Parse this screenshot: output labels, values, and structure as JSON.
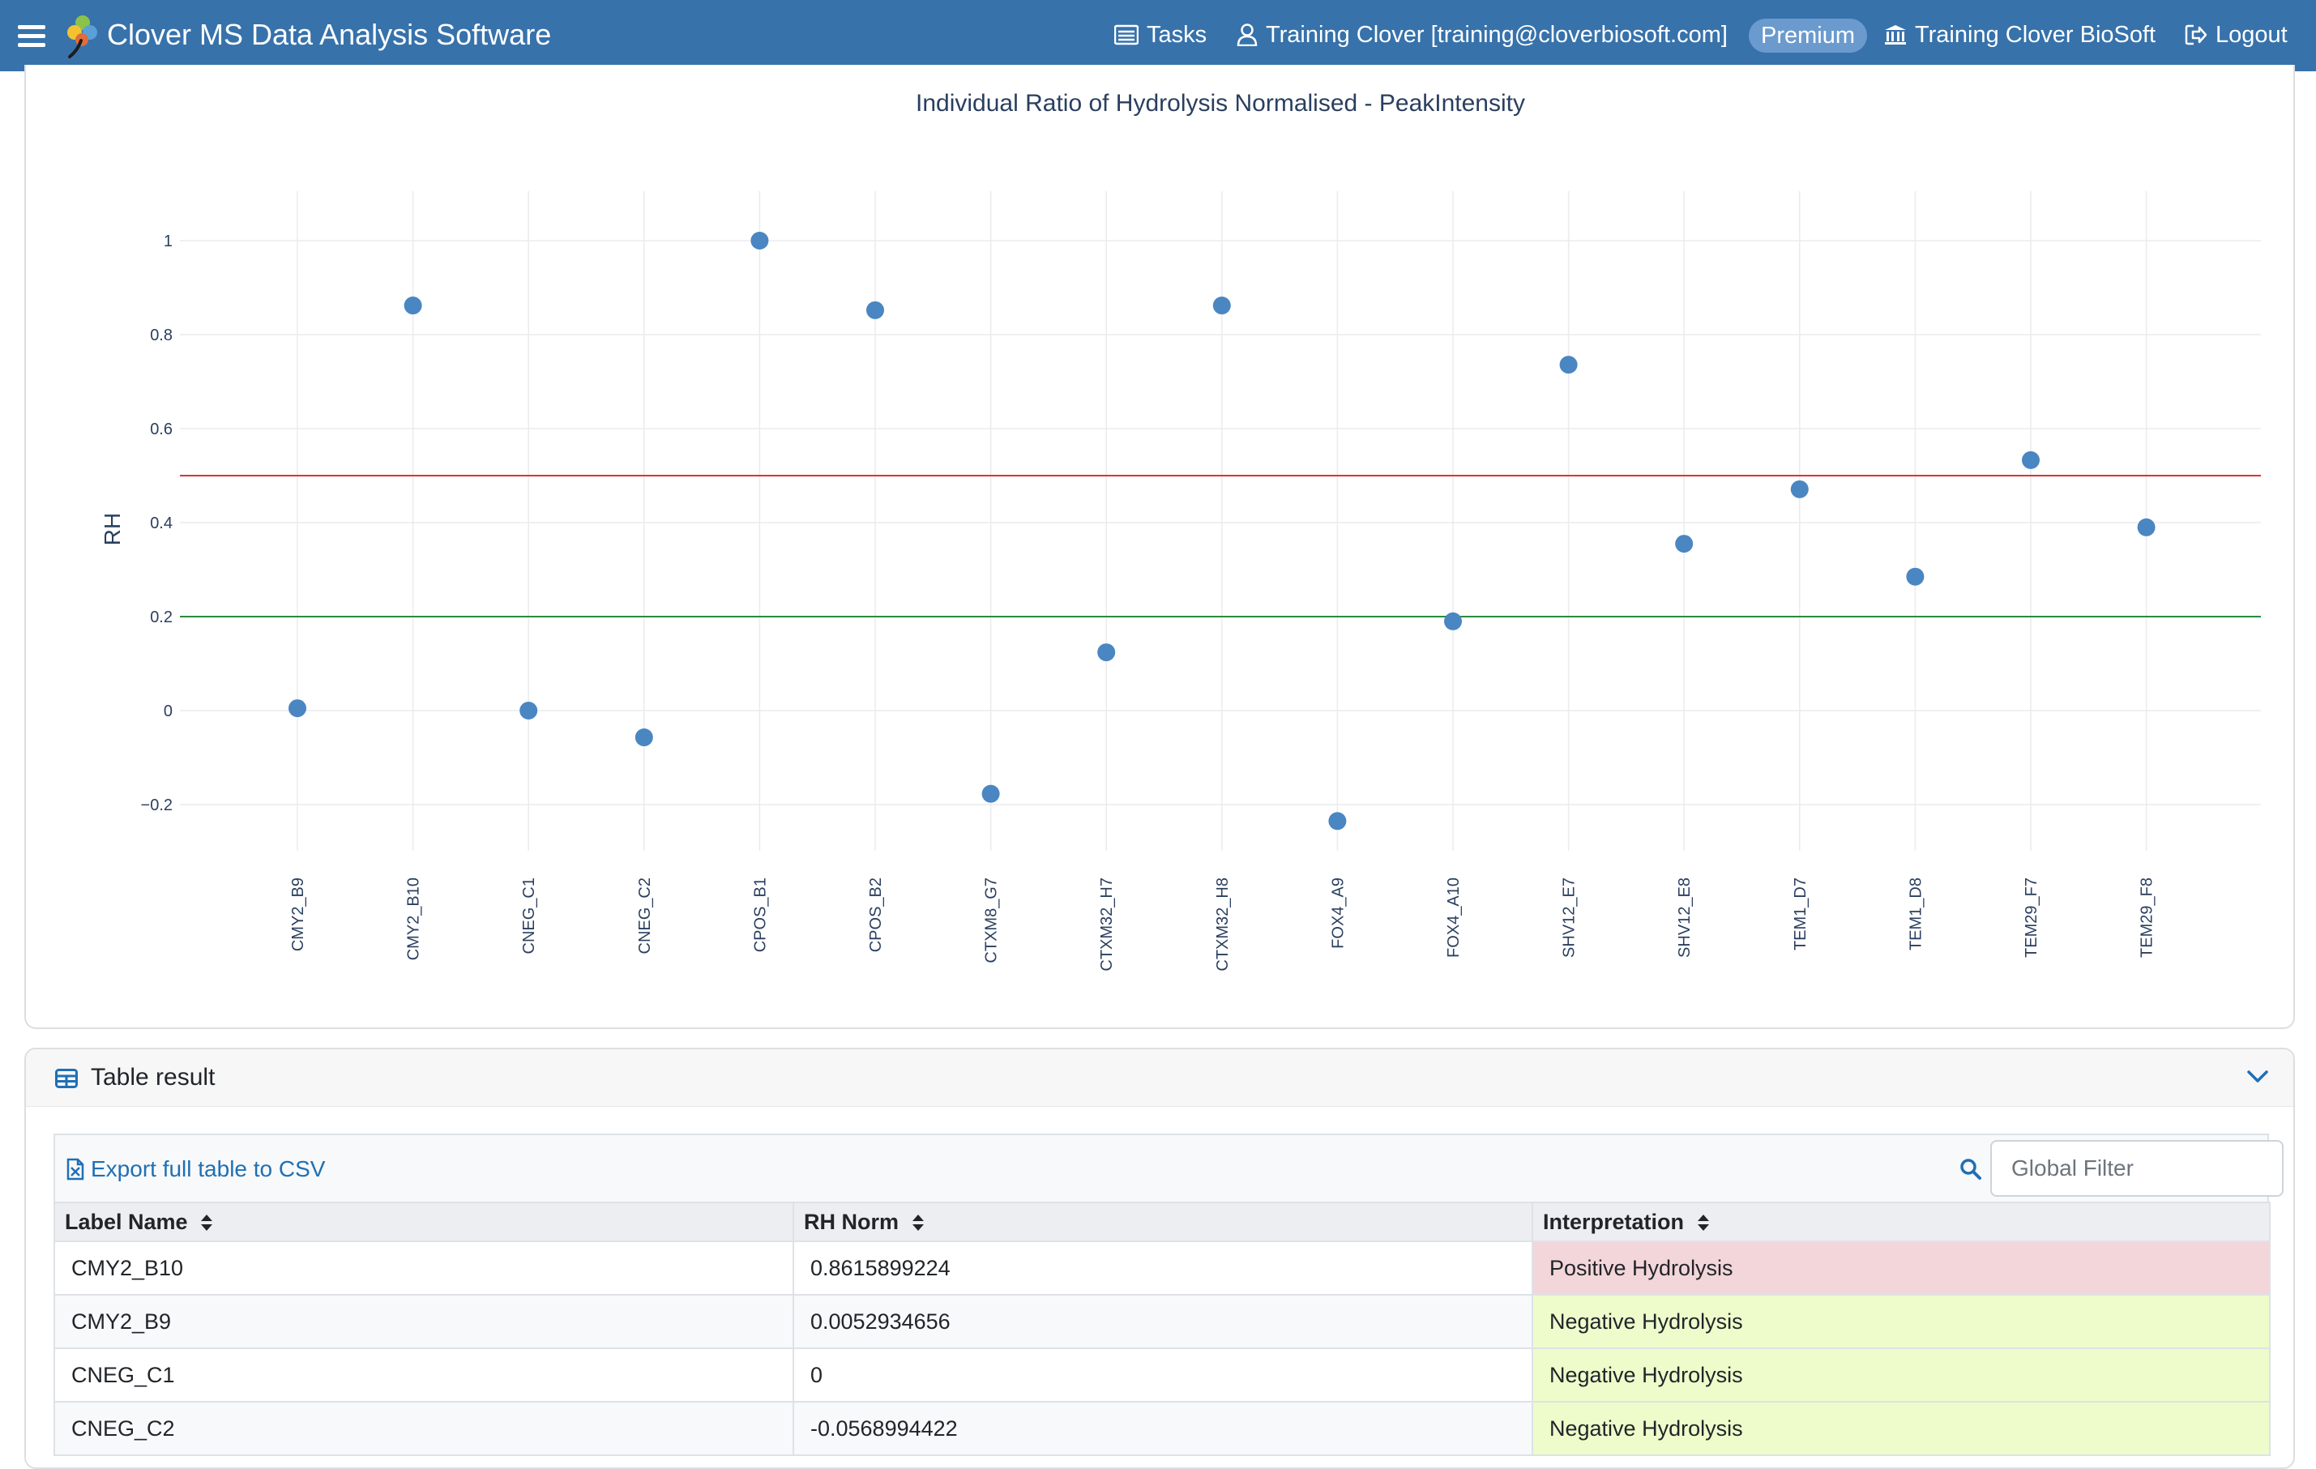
{
  "navbar": {
    "app_title": "Clover MS Data Analysis Software",
    "tasks_label": "Tasks",
    "user_label": "Training Clover [training@cloverbiosoft.com]",
    "plan_badge": "Premium",
    "org_label": "Training Clover BioSoft",
    "logout_label": "Logout",
    "bg_color": "#3772ab"
  },
  "chart_data": {
    "type": "scatter",
    "title": "Individual Ratio of Hydrolysis Normalised - PeakIntensity",
    "xlabel": "",
    "ylabel": "RH",
    "categories": [
      "CMY2_B9",
      "CMY2_B10",
      "CNEG_C1",
      "CNEG_C2",
      "CPOS_B1",
      "CPOS_B2",
      "CTXM8_G7",
      "CTXM32_H7",
      "CTXM32_H8",
      "FOX4_A9",
      "FOX4_A10",
      "SHV12_E7",
      "SHV12_E8",
      "TEM1_D7",
      "TEM1_D8",
      "TEM29_F7",
      "TEM29_F8"
    ],
    "values": [
      0.005,
      0.862,
      0,
      -0.057,
      1.0,
      0.852,
      -0.177,
      0.124,
      0.862,
      -0.235,
      0.19,
      0.736,
      0.355,
      0.471,
      0.285,
      0.533,
      0.39
    ],
    "yticks": [
      -0.2,
      0,
      0.2,
      0.4,
      0.6,
      0.8,
      1
    ],
    "ytick_labels": [
      "−0.2",
      "0",
      "0.2",
      "0.4",
      "0.6",
      "0.8",
      "1"
    ],
    "ylim": [
      -0.3,
      1.1
    ],
    "thresholds": [
      {
        "value": 0.5,
        "color": "#e03131"
      },
      {
        "value": 0.2,
        "color": "#2b8a3e"
      }
    ],
    "marker_color": "#4a86c2",
    "grid": true
  },
  "table": {
    "title": "Table result",
    "export_label": "Export full table to CSV",
    "filter_placeholder": "Global Filter",
    "columns": [
      "Label Name",
      "RH Norm",
      "Interpretation"
    ],
    "rows": [
      {
        "label": "CMY2_B10",
        "rh": "0.8615899224",
        "interp": "Positive Hydrolysis",
        "kind": "pos"
      },
      {
        "label": "CMY2_B9",
        "rh": "0.0052934656",
        "interp": "Negative Hydrolysis",
        "kind": "neg"
      },
      {
        "label": "CNEG_C1",
        "rh": "0",
        "interp": "Negative Hydrolysis",
        "kind": "neg"
      },
      {
        "label": "CNEG_C2",
        "rh": "-0.0568994422",
        "interp": "Negative Hydrolysis",
        "kind": "neg"
      }
    ],
    "positive_color": "#f3d6da",
    "negative_color": "#eefccb"
  }
}
